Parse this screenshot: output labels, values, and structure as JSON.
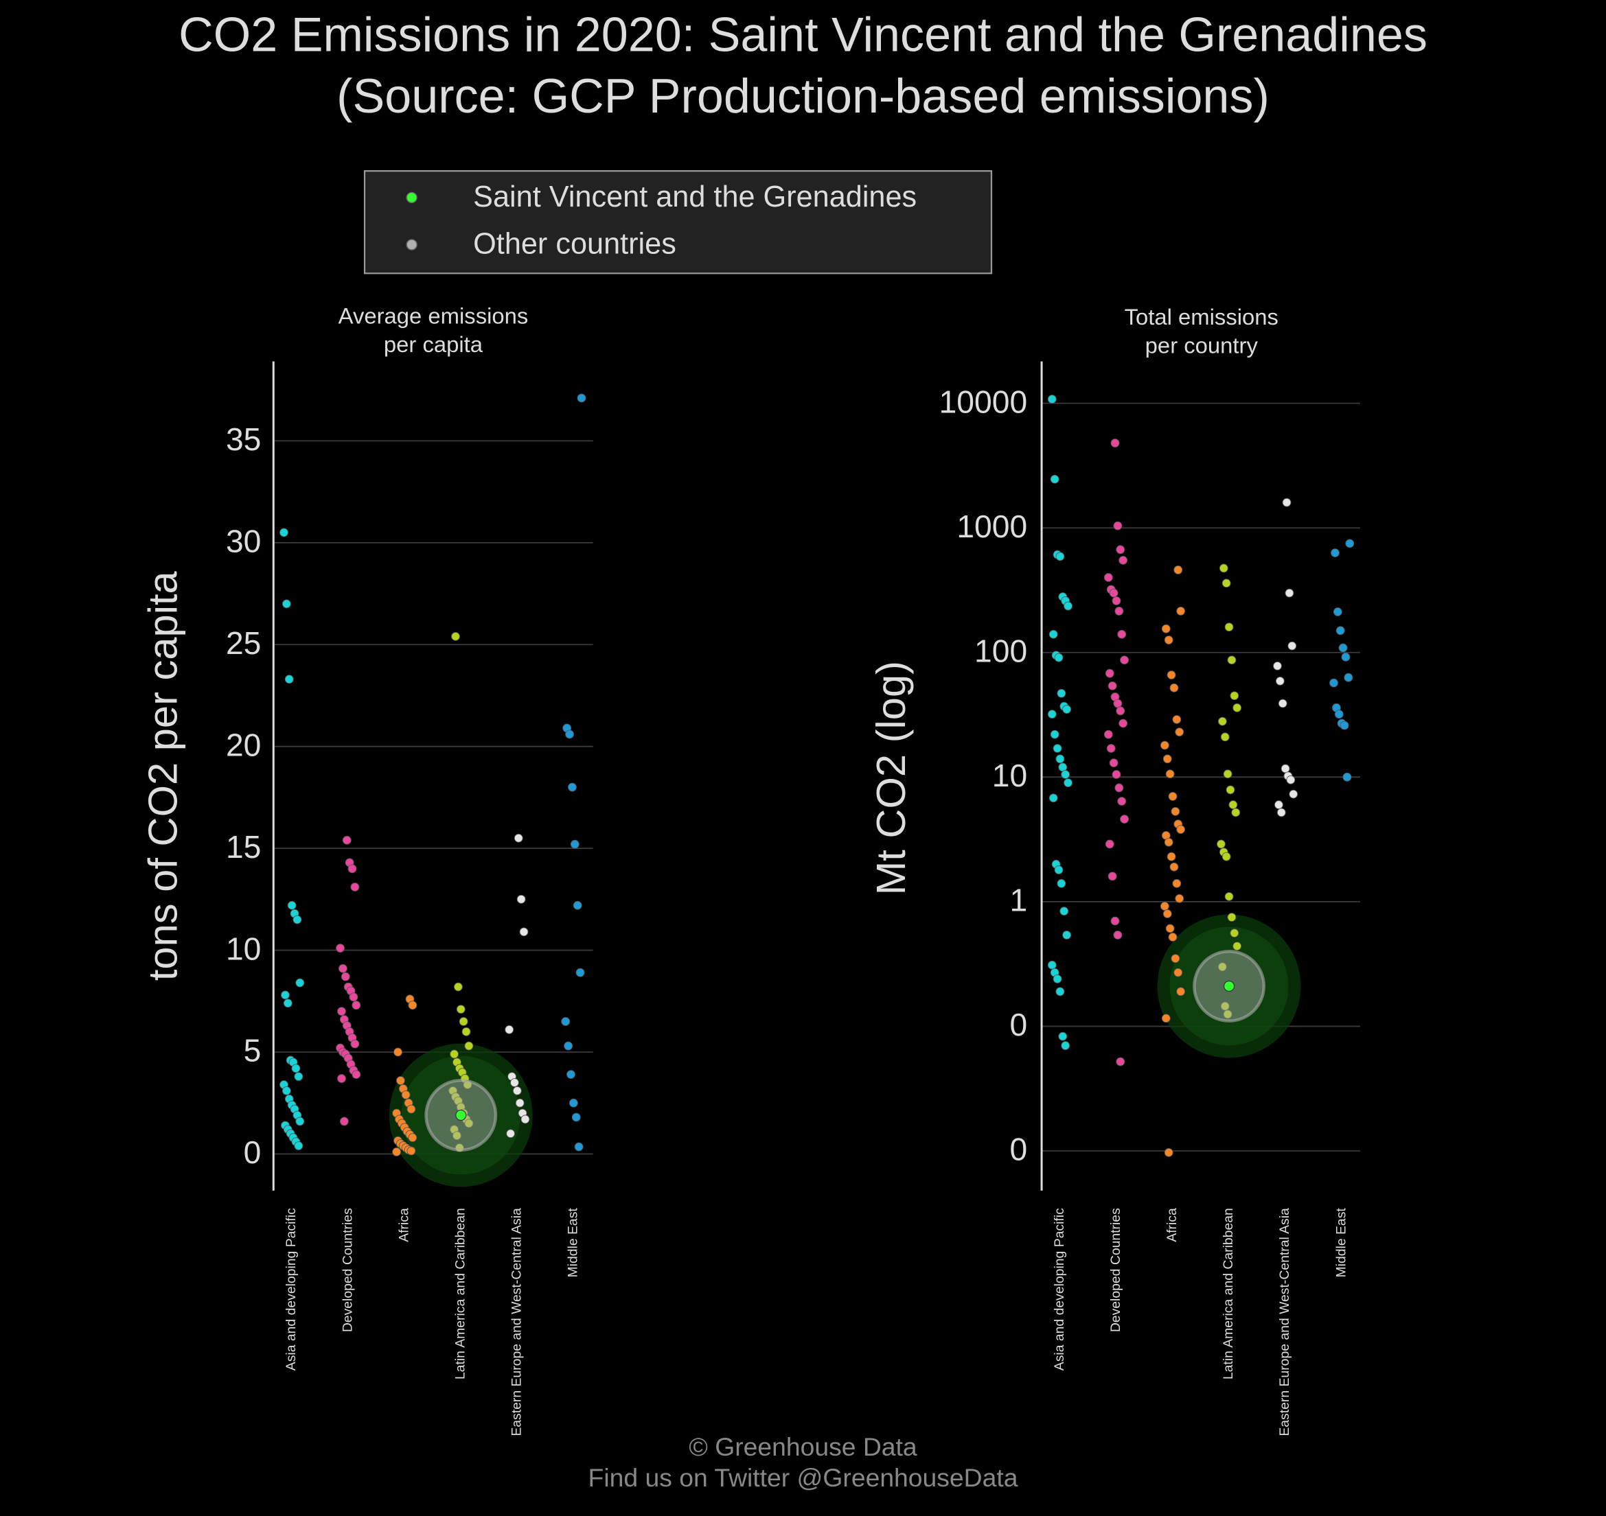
{
  "title": "CO2 Emissions in 2020: Saint Vincent and the Grenadines",
  "subtitle": "(Source: GCP Production-based emissions)",
  "legend": [
    {
      "name": "Saint Vincent and the Grenadines",
      "color": "#33ff33"
    },
    {
      "name": "Other countries",
      "color": "#b0b0b0"
    }
  ],
  "footer": [
    "© Greenhouse Data",
    "Find us on Twitter @GreenhouseData"
  ],
  "chart_data": [
    {
      "type": "strip",
      "title": "Average emissions\nper capita",
      "y_label": "tons of CO2 per capita",
      "log": false,
      "grid": true,
      "categories": [
        "Asia and developing Pacific",
        "Developed Countries",
        "Africa",
        "Latin America and Caribbean",
        "Eastern Europe and West-Central Asia",
        "Middle East"
      ],
      "category_colors": [
        "#19d3d6",
        "#e8479b",
        "#f5872a",
        "#b5d320",
        "#e6e6e6",
        "#1f9ad6"
      ],
      "values": [
        [
          30.5,
          27,
          23.3,
          12.2,
          11.8,
          11.5,
          8.4,
          7.8,
          7.4,
          4.6,
          4.5,
          4.2,
          3.8,
          3.4,
          3.1,
          2.7,
          2.4,
          2.2,
          1.9,
          1.6,
          1.4,
          1.2,
          1.0,
          0.8,
          0.6,
          0.4
        ],
        [
          15.4,
          14.3,
          14.0,
          13.1,
          10.1,
          9.1,
          8.7,
          8.2,
          8.0,
          7.7,
          7.3,
          7.0,
          6.6,
          6.3,
          6.0,
          5.7,
          5.4,
          5.2,
          5.0,
          4.9,
          4.7,
          4.4,
          4.1,
          3.9,
          3.7,
          1.6
        ],
        [
          7.6,
          7.3,
          5.0,
          3.6,
          3.2,
          2.9,
          2.5,
          2.2,
          2.0,
          1.7,
          1.5,
          1.3,
          1.1,
          0.95,
          0.8,
          0.65,
          0.5,
          0.4,
          0.3,
          0.2,
          0.15,
          0.1
        ],
        [
          25.4,
          8.2,
          7.1,
          6.5,
          6.0,
          5.3,
          4.9,
          4.5,
          4.2,
          4.0,
          3.7,
          3.4,
          3.1,
          2.8,
          2.6,
          2.3,
          2.0,
          1.7,
          1.5,
          1.2,
          0.9,
          0.3
        ],
        [
          15.5,
          12.5,
          10.9,
          6.1,
          3.8,
          3.5,
          3.1,
          2.5,
          2.0,
          1.7,
          1.0
        ],
        [
          37.1,
          20.9,
          20.6,
          18.0,
          15.2,
          12.2,
          8.9,
          6.5,
          5.3,
          3.9,
          2.5,
          1.8,
          0.35
        ]
      ],
      "highlight": {
        "category": "Latin America and Caribbean",
        "value": 1.9
      },
      "ylim": [
        -1.8,
        38.9
      ],
      "yticks": [
        0,
        5,
        10,
        15,
        20,
        25,
        30,
        35
      ]
    },
    {
      "type": "strip",
      "title": "Total emissions\nper country",
      "y_label": "Mt CO2 (log)",
      "log": true,
      "grid": true,
      "categories": [
        "Asia and developing Pacific",
        "Developed Countries",
        "Africa",
        "Latin America and Caribbean",
        "Eastern Europe and West-Central Asia",
        "Middle East"
      ],
      "category_colors": [
        "#19d3d6",
        "#e8479b",
        "#f5872a",
        "#b5d320",
        "#e6e6e6",
        "#1f9ad6"
      ],
      "values": [
        [
          10800,
          2460,
          610,
          590,
          280,
          260,
          236,
          140,
          95,
          91,
          47,
          37,
          35,
          32,
          22,
          17,
          14,
          12,
          10.5,
          9,
          6.8,
          2.0,
          1.8,
          1.4,
          0.84,
          0.54,
          0.31,
          0.27,
          0.24,
          0.19,
          0.083,
          0.07
        ],
        [
          4800,
          1040,
          670,
          550,
          400,
          320,
          300,
          260,
          215,
          140,
          87,
          68,
          54,
          44,
          39,
          34,
          27,
          22,
          17,
          13,
          10.5,
          8.2,
          6.4,
          4.6,
          2.9,
          1.6,
          0.7,
          0.54,
          0.052
        ],
        [
          460,
          215,
          155,
          126,
          66,
          52,
          29,
          23,
          18,
          14,
          10.6,
          7.0,
          5.3,
          4.2,
          3.8,
          3.4,
          3.0,
          2.3,
          1.9,
          1.4,
          1.06,
          0.92,
          0.8,
          0.61,
          0.52,
          0.35,
          0.27,
          0.19,
          0.116,
          0.0097
        ],
        [
          475,
          360,
          160,
          87,
          45,
          36,
          28,
          21,
          10.6,
          7.9,
          6.0,
          5.2,
          2.9,
          2.5,
          2.3,
          1.1,
          0.75,
          0.56,
          0.44,
          0.3,
          0.145,
          0.125
        ],
        [
          1600,
          300,
          113,
          78,
          59,
          39,
          11.7,
          10.2,
          9.5,
          7.3,
          6.0,
          5.2
        ],
        [
          750,
          630,
          212,
          150,
          109,
          92,
          63,
          57,
          36,
          32,
          27,
          26,
          10
        ]
      ],
      "highlight": {
        "category": "Latin America and Caribbean",
        "value": 0.21
      },
      "ylim": [
        0.0048,
        21700
      ],
      "yticks": [
        {
          "value": 0.01,
          "label": "0"
        },
        {
          "value": 0.1,
          "label": "0"
        },
        1,
        10,
        100,
        1000,
        10000
      ]
    }
  ]
}
